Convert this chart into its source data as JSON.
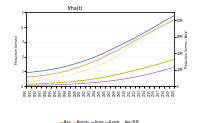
{
  "title": "t/ha(t)",
  "ylabel_left": "Production (tonnes)",
  "ylabel_right": "Production (tonnes - Asia)",
  "years": [
    1990,
    1991,
    1992,
    1993,
    1994,
    1995,
    1996,
    1997,
    1998,
    1999,
    2000,
    2001,
    2002,
    2003,
    2004,
    2005,
    2006,
    2007,
    2008,
    2009,
    2010,
    2011,
    2012,
    2013,
    2014,
    2015,
    2016,
    2017,
    2018,
    2019,
    2020
  ],
  "series": {
    "Africa": [
      120000,
      130000,
      145000,
      158000,
      175000,
      195000,
      215000,
      240000,
      265000,
      295000,
      330000,
      365000,
      405000,
      450000,
      500000,
      555000,
      615000,
      680000,
      750000,
      820000,
      900000,
      980000,
      1060000,
      1140000,
      1230000,
      1320000,
      1410000,
      1510000,
      1610000,
      1700000,
      1800000
    ],
    "Americas": [
      600000,
      630000,
      660000,
      700000,
      750000,
      800000,
      860000,
      930000,
      1010000,
      1100000,
      1200000,
      1310000,
      1430000,
      1560000,
      1700000,
      1850000,
      2010000,
      2180000,
      2360000,
      2530000,
      2700000,
      2880000,
      3060000,
      3240000,
      3420000,
      3600000,
      3780000,
      3960000,
      4150000,
      4320000,
      4500000
    ],
    "Asia": [
      5000000,
      5600000,
      6300000,
      7100000,
      8000000,
      9000000,
      10100000,
      11300000,
      12600000,
      14000000,
      15500000,
      17200000,
      19100000,
      21200000,
      23500000,
      26000000,
      28800000,
      31900000,
      35300000,
      39000000,
      43000000,
      47500000,
      52500000,
      57500000,
      62000000,
      66000000,
      69500000,
      72500000,
      75000000,
      77000000,
      79000000
    ],
    "Europe": [
      900000,
      940000,
      980000,
      1020000,
      1070000,
      1120000,
      1180000,
      1250000,
      1330000,
      1420000,
      1520000,
      1620000,
      1730000,
      1850000,
      1980000,
      2120000,
      2270000,
      2430000,
      2600000,
      2760000,
      2920000,
      3090000,
      3260000,
      3440000,
      3620000,
      3810000,
      4000000,
      4200000,
      4400000,
      4580000,
      4760000
    ],
    "Oceania": [
      50000,
      55000,
      60000,
      65000,
      72000,
      80000,
      90000,
      102000,
      116000,
      132000,
      150000,
      170000,
      192000,
      217000,
      245000,
      276000,
      310000,
      349000,
      392000,
      440000,
      492000,
      549000,
      612000,
      680000,
      752000,
      829000,
      910000,
      995000,
      1085000,
      1175000,
      1265000
    ]
  },
  "colors": {
    "Africa": "#c8b400",
    "Americas": "#e8a060",
    "Asia": "#d0d840",
    "Europe": "#5878c0",
    "Oceania": "#b878b8"
  },
  "left_ylim": [
    0,
    5000000
  ],
  "right_ylim": [
    0,
    90000000
  ],
  "left_yticks": [
    0,
    1000000,
    2000000,
    3000000,
    4000000,
    5000000
  ],
  "right_yticks": [
    0,
    20000000,
    40000000,
    60000000,
    80000000
  ],
  "background": "#ffffff"
}
